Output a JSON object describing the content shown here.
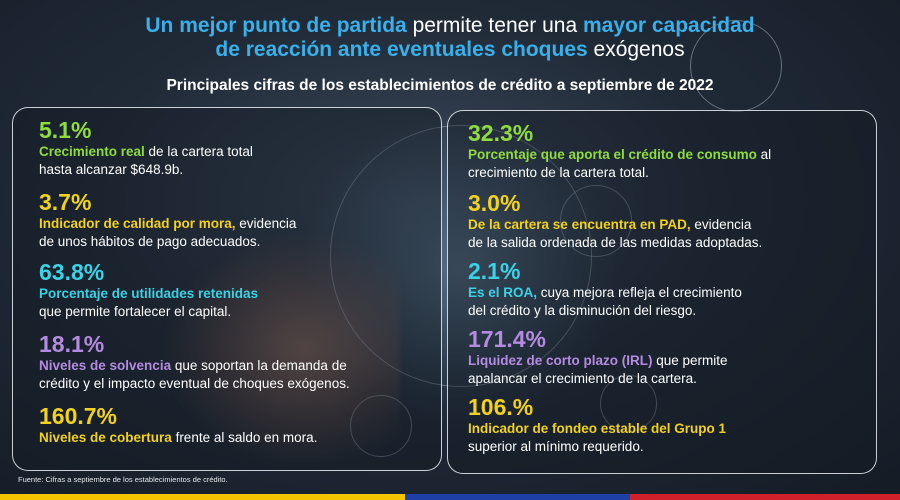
{
  "headline": {
    "line1_highlight": "Un mejor punto de partida",
    "line1_plain": " permite tener una ",
    "line1_highlight2": "mayor capacidad",
    "line2_highlight": "de reacción ante eventuales choques",
    "line2_plain": " exógenos"
  },
  "subtitle": "Principales cifras de los establecimientos de crédito a septiembre de 2022",
  "left_stats": [
    {
      "value": "5.1%",
      "emphasis": "Crecimiento  real",
      "text": " de la cartera total",
      "text2": "hasta alcanzar  $648.9b.",
      "color": "#8fdc3f"
    },
    {
      "value": "3.7%",
      "emphasis": "Indicador de calidad por mora,",
      "text": "  evidencia",
      "text2": "de unos hábitos de pago adecuados.",
      "color": "#f2d21d"
    },
    {
      "value": "63.8%",
      "emphasis": "Porcentaje de utilidades  retenidas",
      "text": "",
      "text2": "que permite fortalecer el capital.",
      "color": "#3ad2e6"
    },
    {
      "value": "18.1%",
      "emphasis": "Niveles de solvencia",
      "text": " que soportan  la demanda  de",
      "text2": "crédito y el impacto eventual de choques exógenos.",
      "color": "#b48be0"
    },
    {
      "value": "160.7%",
      "emphasis": "Niveles de cobertura",
      "text": "  frente al saldo en mora.",
      "text2": "",
      "color": "#f2d21d"
    }
  ],
  "right_stats": [
    {
      "value": "32.3%",
      "emphasis": "Porcentaje que  aporta  el crédito de consumo",
      "text": " al",
      "text2": "crecimiento de la cartera total.",
      "color": "#8fdc3f"
    },
    {
      "value": "3.0%",
      "emphasis": "De la cartera se encuentra en PAD,",
      "text": "  evidencia",
      "text2": "de la salida ordenada de las  medidas adoptadas.",
      "color": "#f2d21d"
    },
    {
      "value": "2.1%",
      "emphasis": "Es el ROA,",
      "text": " cuya mejora  refleja el crecimiento",
      "text2": "del crédito y la disminución del riesgo.",
      "color": "#3ad2e6"
    },
    {
      "value": "171.4%",
      "emphasis": "Liquidez de corto plazo (IRL)",
      "text": " que permite",
      "text2": "apalancar  el crecimiento de la cartera.",
      "color": "#b48be0"
    },
    {
      "value": "106.%",
      "emphasis": "Indicador de fondeo estable del Grupo 1",
      "text": "",
      "text2": "superior al mínimo requerido.",
      "color": "#f2d21d"
    }
  ],
  "footnote": "Fuente: Cifras a septiembre de los establecimientos de crédito.",
  "colors": {
    "accent_blue": "#39b0ea",
    "green": "#8fdc3f",
    "yellow": "#f2d21d",
    "cyan": "#3ad2e6",
    "purple": "#b48be0"
  }
}
